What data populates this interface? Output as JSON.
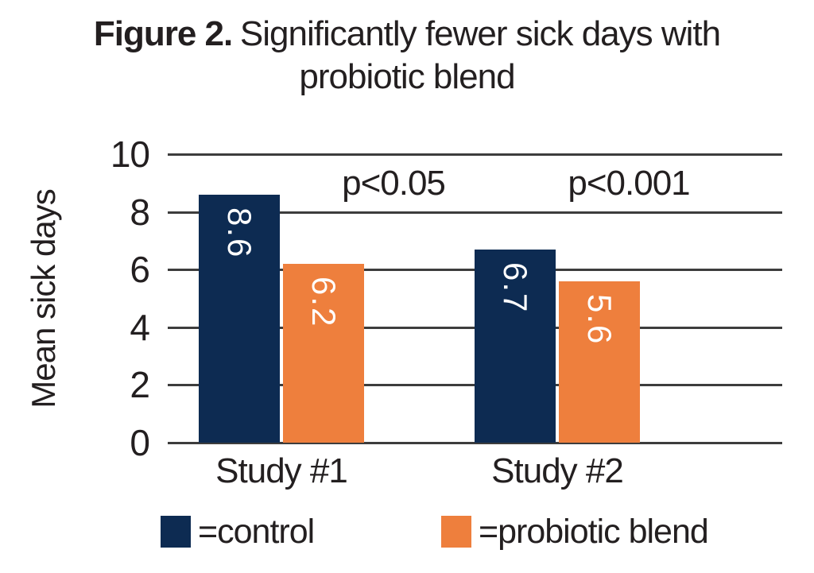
{
  "title": {
    "figure_label": "Figure 2.",
    "line1": "Significantly fewer sick days with",
    "line2": "probiotic blend"
  },
  "chart_data": {
    "type": "bar",
    "title": "Figure 2. Significantly fewer sick days with probiotic blend",
    "categories": [
      "Study #1",
      "Study #2"
    ],
    "series": [
      {
        "name": "control",
        "color": "#0D2B52",
        "values": [
          8.6,
          6.7
        ],
        "value_labels": [
          "8.6",
          "6.7"
        ]
      },
      {
        "name": "probiotic blend",
        "color": "#EE7F3D",
        "values": [
          6.2,
          5.6
        ],
        "value_labels": [
          "6.2",
          "5.6"
        ]
      }
    ],
    "annotations": [
      {
        "text": "p<0.05",
        "category": "Study #1"
      },
      {
        "text": "p<0.001",
        "category": "Study #2"
      }
    ],
    "ylabel": "Mean sick days",
    "xlabel": "",
    "yticks": [
      0,
      2,
      4,
      6,
      8,
      10
    ],
    "ylim": [
      0,
      10
    ],
    "grid": true,
    "bar_value_label_color": "#FFFFFF",
    "legend_position": "bottom",
    "legend": [
      {
        "label": "=control",
        "color": "#0D2B52"
      },
      {
        "label": "=probiotic blend",
        "color": "#EE7F3D"
      }
    ]
  },
  "colors": {
    "control_navy": "#0D2B52",
    "probiotic_orange": "#EE7F3D",
    "text": "#231F20",
    "gridline": "#3D3D3D",
    "background": "#FFFFFF"
  }
}
